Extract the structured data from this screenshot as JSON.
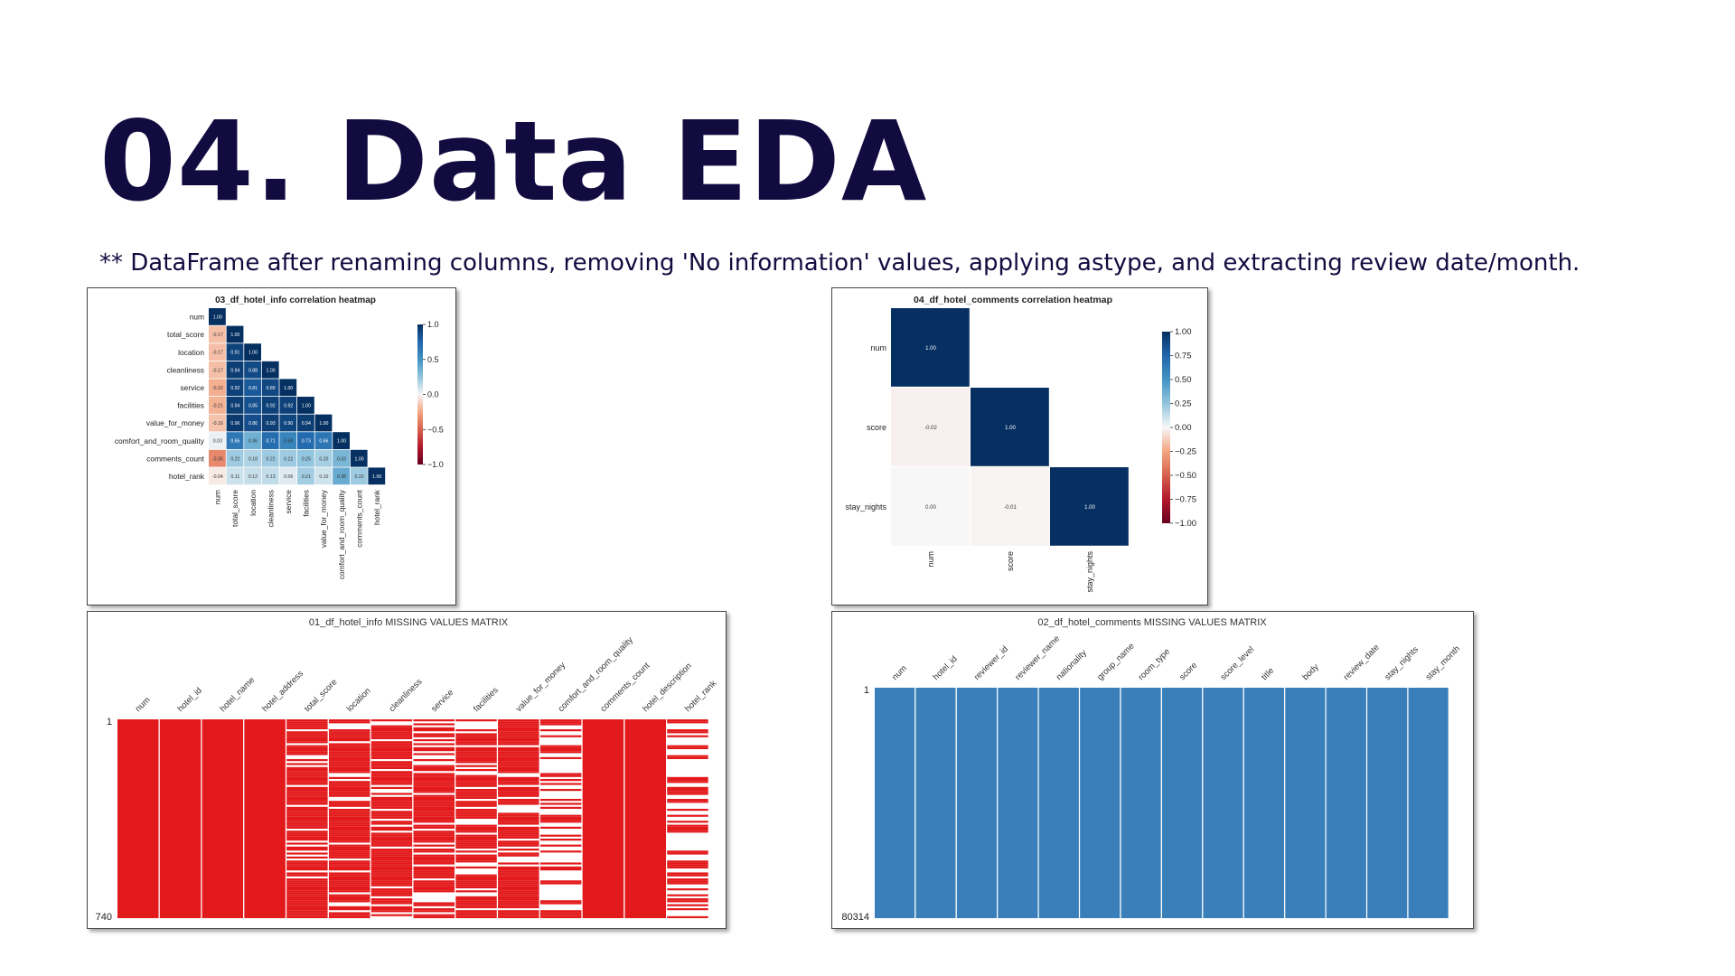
{
  "slide": {
    "title": "04. Data EDA",
    "subtitle": "** DataFrame after renaming columns, removing 'No information' values, applying astype, and extracting review date/month."
  },
  "colors": {
    "title_text": "#120b40",
    "missing_info": "#e31a1c",
    "missing_comments": "#3a7fba",
    "heat_pos": "#053061",
    "heat_neutral": "#f7f7f7",
    "heat_neg": "#67001f"
  },
  "chart_data": [
    {
      "type": "heatmap",
      "title": "03_df_hotel_info correlation heatmap",
      "labels": [
        "num",
        "total_score",
        "location",
        "cleanliness",
        "service",
        "facilities",
        "value_for_money",
        "comfort_and_room_quality",
        "comments_count",
        "hotel_rank"
      ],
      "matrix": [
        [
          1.0
        ],
        [
          -0.17,
          1.0
        ],
        [
          -0.17,
          0.91,
          1.0
        ],
        [
          -0.17,
          0.94,
          0.88,
          1.0
        ],
        [
          -0.22,
          0.92,
          0.81,
          0.89,
          1.0
        ],
        [
          -0.21,
          0.94,
          0.85,
          0.92,
          0.92,
          1.0
        ],
        [
          -0.16,
          0.96,
          0.86,
          0.93,
          0.9,
          0.94,
          1.0
        ],
        [
          0.03,
          0.65,
          0.36,
          0.71,
          0.58,
          0.73,
          0.66,
          1.0
        ],
        [
          -0.35,
          0.22,
          0.18,
          0.22,
          0.22,
          0.25,
          0.2,
          0.33,
          1.0
        ],
        [
          -0.04,
          0.11,
          0.12,
          0.13,
          0.06,
          0.21,
          0.1,
          0.38,
          0.22,
          1.0
        ]
      ],
      "colorbar_ticks": [
        "1.0",
        "0.5",
        "0.0",
        "−0.5",
        "−1.0"
      ],
      "vmin": -1.0,
      "vmax": 1.0,
      "triangle": "lower"
    },
    {
      "type": "heatmap",
      "title": "04_df_hotel_comments correlation heatmap",
      "labels": [
        "num",
        "score",
        "stay_nights"
      ],
      "matrix": [
        [
          1.0
        ],
        [
          -0.02,
          1.0
        ],
        [
          0.0,
          -0.01,
          1.0
        ]
      ],
      "colorbar_ticks": [
        "1.00",
        "0.75",
        "0.50",
        "0.25",
        "0.00",
        "−0.25",
        "−0.50",
        "−0.75",
        "−1.00"
      ],
      "vmin": -1.0,
      "vmax": 1.0,
      "triangle": "lower"
    },
    {
      "type": "missing_matrix",
      "title": "01_df_hotel_info MISSING VALUES MATRIX",
      "columns": [
        "num",
        "hotel_id",
        "hotel_name",
        "hotel_address",
        "total_score",
        "location",
        "cleanliness",
        "service",
        "facilities",
        "value_for_money",
        "comfort_and_room_quality",
        "comments_count",
        "hotel_description",
        "hotel_rank"
      ],
      "row_start_label": "1",
      "row_end_label": "740",
      "total_rows": 740,
      "color": "#e31a1c",
      "completeness": [
        1.0,
        1.0,
        1.0,
        1.0,
        0.79,
        0.78,
        0.77,
        0.74,
        0.76,
        0.79,
        0.28,
        1.0,
        1.0,
        0.36
      ]
    },
    {
      "type": "missing_matrix",
      "title": "02_df_hotel_comments MISSING VALUES MATRIX",
      "columns": [
        "num",
        "hotel_id",
        "reviewer_id",
        "reviewer_name",
        "nationality",
        "group_name",
        "room_type",
        "score",
        "score_level",
        "title",
        "body",
        "review_date",
        "stay_nights",
        "stay_month"
      ],
      "row_start_label": "1",
      "row_end_label": "80314",
      "total_rows": 80314,
      "color": "#3a7fba",
      "completeness": [
        1,
        1,
        1,
        1,
        1,
        1,
        1,
        1,
        1,
        1,
        1,
        1,
        1,
        1
      ]
    }
  ]
}
